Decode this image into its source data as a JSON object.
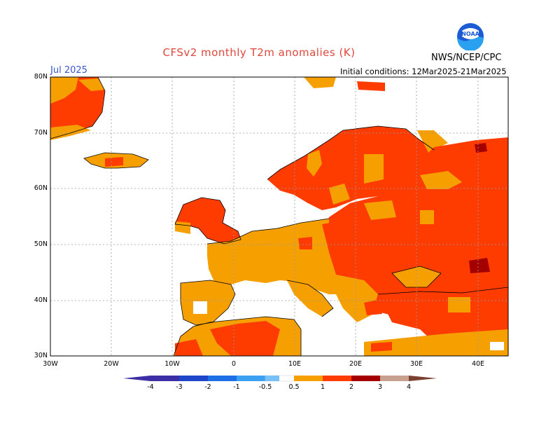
{
  "title": "CFSv2 monthly T2m anomalies (K)",
  "valid_month": "Jul 2025",
  "initial_conditions": "Initial conditions: 12Mar2025-21Mar2025",
  "agency": "NWS/NCEP/CPC",
  "logo_text": "NOAA",
  "map": {
    "latitude_labels": [
      "80N",
      "70N",
      "60N",
      "50N",
      "40N",
      "30N"
    ],
    "longitude_labels": [
      "30W",
      "20W",
      "10W",
      "0",
      "10E",
      "20E",
      "30E",
      "40E"
    ],
    "extent": {
      "lon_min": -30,
      "lon_max": 45,
      "lat_min": 30,
      "lat_max": 80
    },
    "grid": "dotted graticule every 10 degrees"
  },
  "colorbar": {
    "labels": [
      "-4",
      "-3",
      "-2",
      "-1",
      "-0.5",
      "0.5",
      "1",
      "2",
      "3",
      "4"
    ],
    "colors": [
      "#3c2ea5",
      "#1e46c8",
      "#1e6ee6",
      "#3ca0f0",
      "#78c0f8",
      "#ffffff",
      "#f5a000",
      "#ff3c00",
      "#a50000",
      "#c8a090",
      "#7a4030"
    ]
  },
  "anomaly_colors": {
    "0.5-1": "#f5a000",
    "1-2": "#ff3c00",
    "2-3": "#a50000",
    "0.5 to -0.5": "#ffffff"
  }
}
